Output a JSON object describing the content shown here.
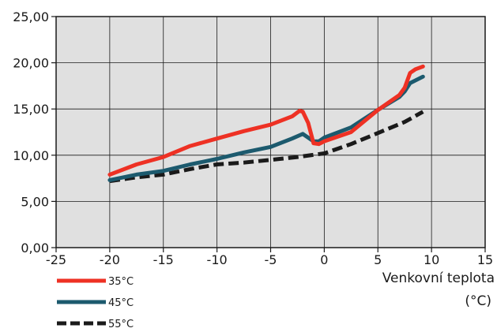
{
  "chart_data": {
    "type": "line",
    "xlabel_line1": "Venkovní teplota",
    "xlabel_line2": "(°C)",
    "xlim": [
      -25,
      15
    ],
    "ylim": [
      0,
      25
    ],
    "x_ticks": [
      -25,
      -20,
      -15,
      -10,
      -5,
      0,
      5,
      10,
      15
    ],
    "x_tick_labels": [
      "-25",
      "-20",
      "-15",
      "-10",
      "-5",
      "0",
      "5",
      "10",
      "15"
    ],
    "y_ticks": [
      0,
      5,
      10,
      15,
      20,
      25
    ],
    "y_tick_labels": [
      "0,00",
      "5,00",
      "10,00",
      "15,00",
      "20,00",
      "25,00"
    ],
    "grid": true,
    "legend_position": "bottom-left",
    "series": [
      {
        "name": "35°C",
        "color": "#ee3124",
        "dash": "solid",
        "x": [
          -20,
          -17.5,
          -15,
          -12.5,
          -10,
          -7.5,
          -5,
          -3,
          -2.3,
          -2,
          -1.5,
          -1,
          -0.5,
          0,
          1,
          2.5,
          5,
          7,
          7.5,
          8,
          8.5,
          9.2
        ],
        "y": [
          7.9,
          9.0,
          9.8,
          11.0,
          11.8,
          12.6,
          13.3,
          14.2,
          14.8,
          14.7,
          13.5,
          11.3,
          11.2,
          11.5,
          11.9,
          12.5,
          14.9,
          16.5,
          17.3,
          18.9,
          19.3,
          19.6
        ]
      },
      {
        "name": "45°C",
        "color": "#1c5a6e",
        "dash": "solid",
        "x": [
          -20,
          -17.5,
          -15,
          -12.5,
          -10,
          -7.5,
          -5,
          -3,
          -2,
          -1,
          -0.5,
          0,
          2.5,
          5,
          7,
          7.5,
          8,
          9.2
        ],
        "y": [
          7.3,
          7.9,
          8.3,
          9.0,
          9.6,
          10.3,
          10.9,
          11.8,
          12.3,
          11.5,
          11.5,
          11.9,
          13.0,
          14.9,
          16.3,
          16.9,
          17.8,
          18.5
        ]
      },
      {
        "name": "55°C",
        "color": "#1a1a1a",
        "dash": "dashed",
        "x": [
          -20,
          -17.5,
          -15,
          -12.5,
          -10,
          -7.5,
          -5,
          -2.5,
          0,
          2.5,
          5,
          7.5,
          9.2
        ],
        "y": [
          7.2,
          7.6,
          7.9,
          8.5,
          9.0,
          9.2,
          9.5,
          9.8,
          10.2,
          11.2,
          12.4,
          13.6,
          14.7
        ]
      }
    ]
  }
}
